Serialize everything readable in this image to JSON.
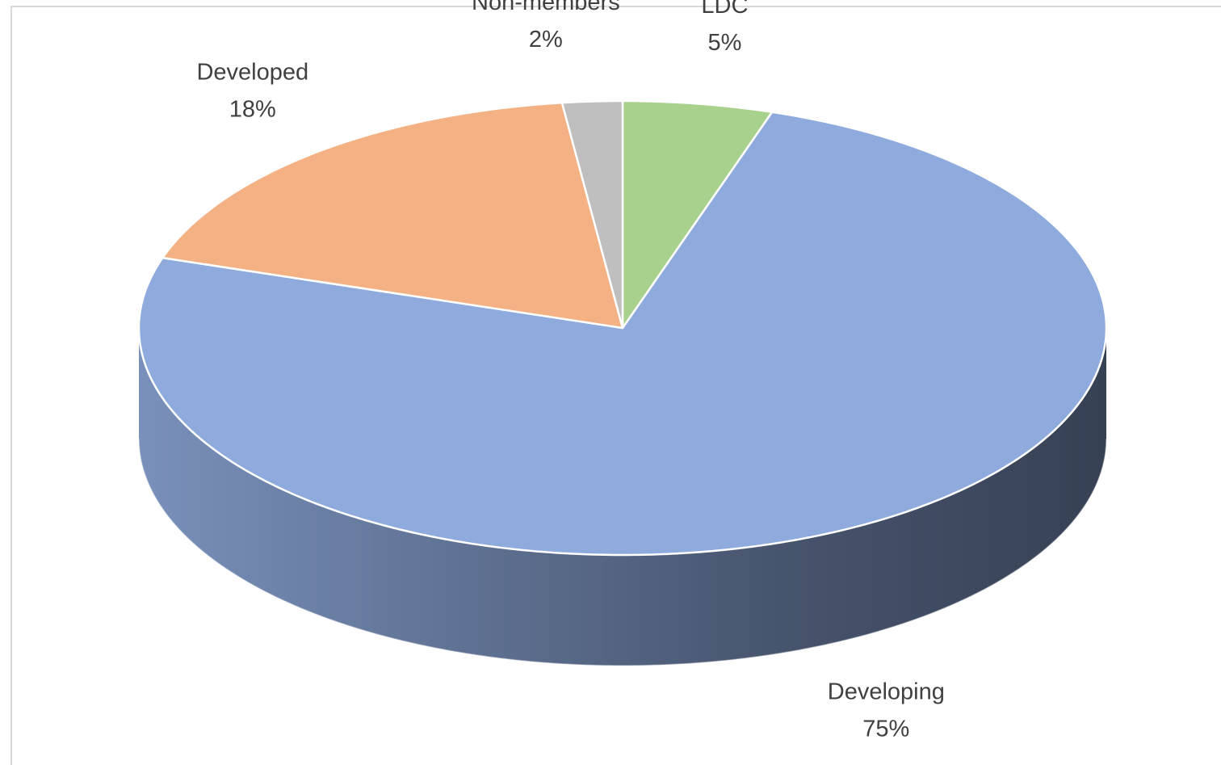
{
  "chart_data": {
    "type": "pie3d",
    "categories": [
      "LDC",
      "Developing",
      "Developed",
      "Non-members"
    ],
    "values": [
      5,
      75,
      18,
      2
    ],
    "value_labels": [
      "5%",
      "75%",
      "18%",
      "2%"
    ],
    "colors": [
      "#a9d18e",
      "#8faadc",
      "#f4b183",
      "#bfbfbf"
    ]
  }
}
